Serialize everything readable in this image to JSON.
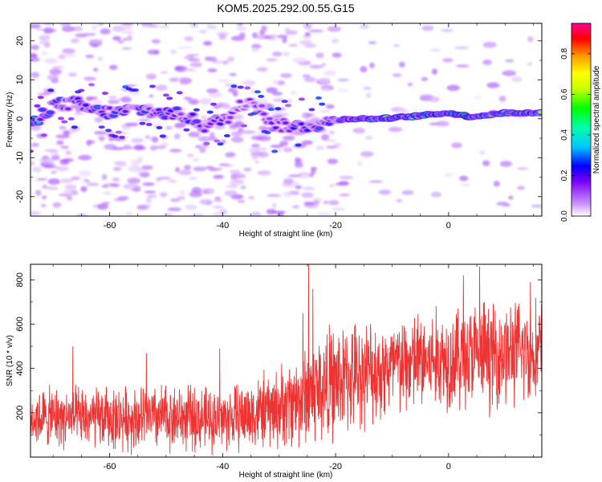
{
  "title": "KOM5.2025.292.00.55.G15",
  "chart_data": [
    {
      "type": "heatmap",
      "xlabel": "Height of straight line (km)",
      "ylabel": "Frequency (Hz)",
      "xlim": [
        -74,
        16.5
      ],
      "ylim": [
        -25,
        24.5
      ],
      "xticks": [
        -60,
        -40,
        -20,
        0
      ],
      "xtick_labels": [
        "-60",
        "-40",
        "-20",
        "0"
      ],
      "yticks": [
        -20,
        -10,
        0,
        10,
        20
      ],
      "ytick_labels": [
        "-20",
        "-10",
        "0",
        "10",
        "20"
      ],
      "colorbar": {
        "label": "Normalized spectral amplitude",
        "range": [
          0,
          0.95
        ],
        "ticks": [
          0.0,
          0.2,
          0.4,
          0.6,
          0.8
        ],
        "tick_labels": [
          "0.0",
          "0.2",
          "0.4",
          "0.6",
          "0.8"
        ]
      },
      "ridge": [
        {
          "x": -72,
          "f": 1.0,
          "a": 0.35
        },
        {
          "x": -70,
          "f": 3.5,
          "a": 0.3
        },
        {
          "x": -66,
          "f": 4.0,
          "a": 0.28
        },
        {
          "x": -63,
          "f": 2.0,
          "a": 0.3
        },
        {
          "x": -59,
          "f": 1.5,
          "a": 0.3
        },
        {
          "x": -55,
          "f": 2.5,
          "a": 0.28
        },
        {
          "x": -51,
          "f": 1.5,
          "a": 0.3
        },
        {
          "x": -47,
          "f": 1.0,
          "a": 0.25
        },
        {
          "x": -43,
          "f": -2.0,
          "a": 0.3
        },
        {
          "x": -39,
          "f": 0.5,
          "a": 0.22
        },
        {
          "x": -35,
          "f": 5.5,
          "a": 0.18
        },
        {
          "x": -31,
          "f": -1.5,
          "a": 0.22
        },
        {
          "x": -27,
          "f": -2.0,
          "a": 0.28
        },
        {
          "x": -23,
          "f": -1.5,
          "a": 0.3
        },
        {
          "x": -20,
          "f": -0.5,
          "a": 0.25
        },
        {
          "x": -18,
          "f": 0.0,
          "a": 0.62
        },
        {
          "x": -12,
          "f": 0.0,
          "a": 0.7
        },
        {
          "x": -7,
          "f": 0.5,
          "a": 0.8
        },
        {
          "x": 0,
          "f": 1.5,
          "a": 0.85
        },
        {
          "x": 4,
          "f": 0.5,
          "a": 0.78
        },
        {
          "x": 10,
          "f": 1.5,
          "a": 0.8
        },
        {
          "x": 15,
          "f": 1.5,
          "a": 0.72
        }
      ]
    },
    {
      "type": "line",
      "xlabel": "Height of straight line (km)",
      "ylabel": "SNR (10 * v/v)",
      "xlim": [
        -74,
        16.5
      ],
      "ylim": [
        0,
        870
      ],
      "xticks": [
        -60,
        -40,
        -20,
        0
      ],
      "xtick_labels": [
        "-60",
        "-40",
        "-20",
        "0"
      ],
      "yticks": [
        200,
        400,
        600,
        800
      ],
      "ytick_labels": [
        "200",
        "400",
        "600",
        "800"
      ],
      "series": [
        {
          "name": "SNR",
          "color": "#ee3333",
          "trend": [
            {
              "x": -74,
              "mean": 180,
              "spread": 130
            },
            {
              "x": -60,
              "mean": 175,
              "spread": 140
            },
            {
              "x": -50,
              "mean": 180,
              "spread": 150
            },
            {
              "x": -40,
              "mean": 170,
              "spread": 140
            },
            {
              "x": -30,
              "mean": 220,
              "spread": 180
            },
            {
              "x": -22,
              "mean": 320,
              "spread": 260
            },
            {
              "x": -15,
              "mean": 380,
              "spread": 230
            },
            {
              "x": -5,
              "mean": 430,
              "spread": 230
            },
            {
              "x": 5,
              "mean": 460,
              "spread": 240
            },
            {
              "x": 16.5,
              "mean": 480,
              "spread": 230
            }
          ],
          "peaks": [
            {
              "x": -24.8,
              "y": 868
            },
            {
              "x": -24.0,
              "y": 760
            },
            {
              "x": -25.8,
              "y": 650
            },
            {
              "x": 2.6,
              "y": 820
            },
            {
              "x": 5.5,
              "y": 860
            },
            {
              "x": 14.5,
              "y": 790
            },
            {
              "x": -66.5,
              "y": 500
            },
            {
              "x": -53.5,
              "y": 470
            },
            {
              "x": -40.5,
              "y": 490
            }
          ]
        }
      ]
    }
  ]
}
